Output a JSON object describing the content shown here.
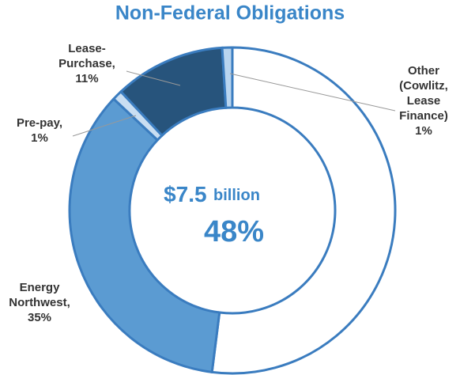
{
  "chart_data": {
    "type": "donut",
    "title": "Non-Federal Obligations",
    "center_value": "$7.5",
    "center_unit": "billion",
    "center_percent": "48%",
    "categories": [
      null,
      "Energy Northwest,",
      "Pre-pay,",
      "Lease-Purchase,",
      "Other (Cowlitz, Lease Finance)"
    ],
    "values": [
      52,
      35,
      1,
      11,
      1
    ],
    "value_labels": [
      null,
      "35%",
      "1%",
      "11%",
      "1%"
    ],
    "colors": [
      "#ffffff",
      "#5b9bd2",
      "#c9def2",
      "#27547c",
      "#b9d5ef"
    ]
  }
}
